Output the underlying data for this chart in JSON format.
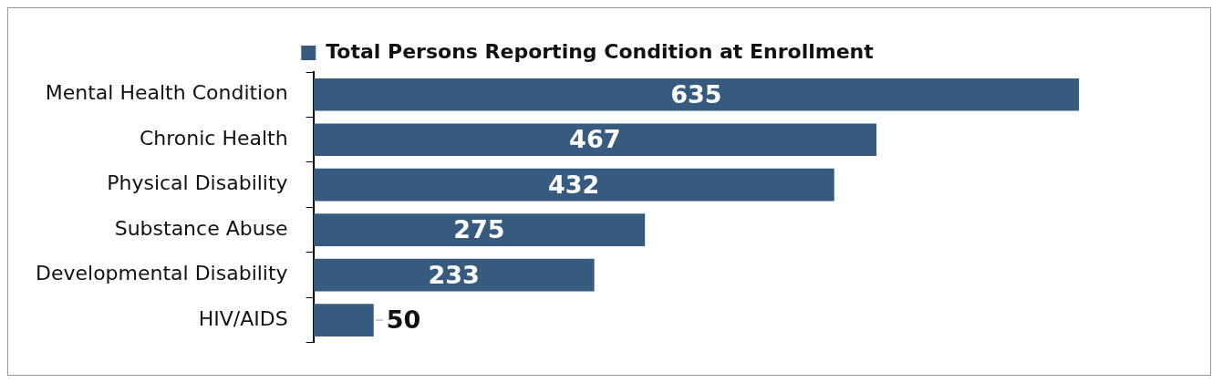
{
  "chart_data": {
    "type": "bar",
    "orientation": "horizontal",
    "categories": [
      "Mental Health Condition",
      "Chronic Health",
      "Physical Disability",
      "Substance Abuse",
      "Developmental Disability",
      "HIV/AIDS"
    ],
    "series": [
      {
        "name": "Total Persons Reporting Condition at Enrollment",
        "color": "#375a7f",
        "values": [
          635,
          467,
          432,
          275,
          233,
          50
        ]
      }
    ],
    "data_labels": true,
    "legend": "top",
    "grid": false
  }
}
